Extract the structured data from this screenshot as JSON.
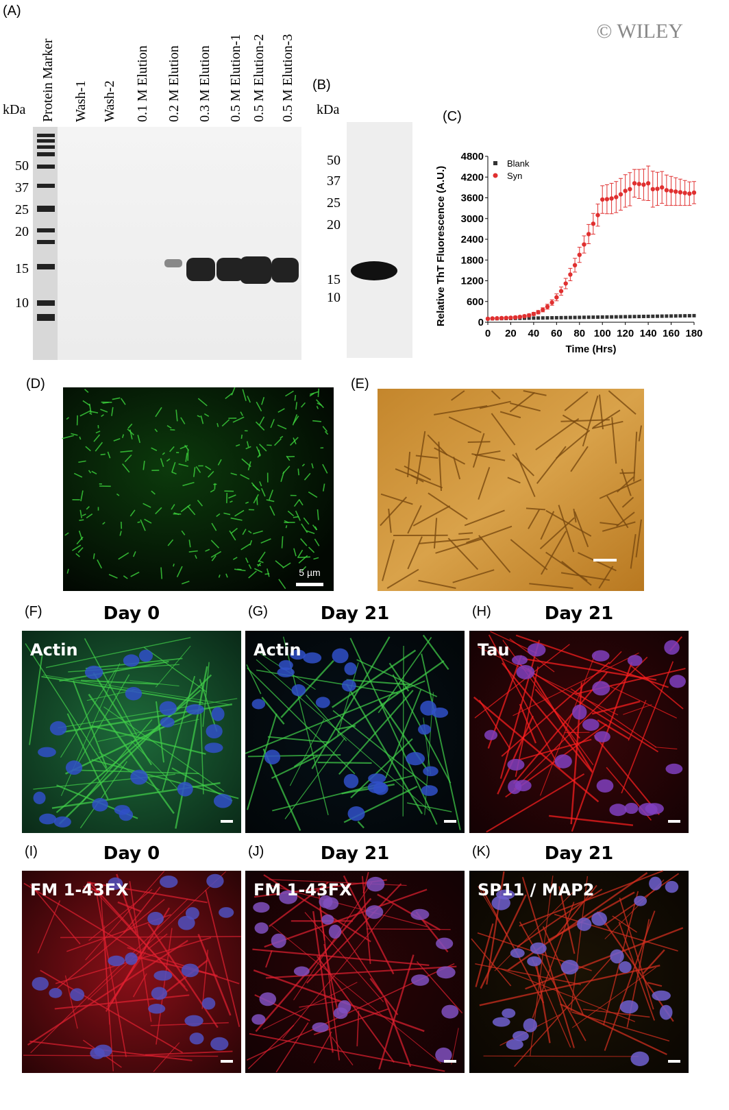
{
  "watermark": "© WILEY",
  "panels": {
    "A": {
      "label": "(A)",
      "unit": "kDa",
      "lanes": [
        "Protein Marker",
        "Wash-1",
        "Wash-2",
        "0.1 M Elution",
        "0.2 M Elution",
        "0.3 M Elution",
        "0.5 M Elution-1",
        "0.5 M Elution-2",
        "0.5 M Elution-3"
      ],
      "markers": [
        "50",
        "37",
        "25",
        "20",
        "15",
        "10"
      ]
    },
    "B": {
      "label": "(B)",
      "unit": "kDa",
      "markers": [
        "50",
        "37",
        "25",
        "20",
        "15",
        "10"
      ]
    },
    "D": {
      "label": "(D)",
      "scale_bar": "5 µm"
    },
    "E": {
      "label": "(E)"
    },
    "F": {
      "label": "(F)",
      "title": "Day 0",
      "stain": "Actin"
    },
    "G": {
      "label": "(G)",
      "title": "Day 21",
      "stain": "Actin"
    },
    "H": {
      "label": "(H)",
      "title": "Day 21",
      "stain": "Tau"
    },
    "I": {
      "label": "(I)",
      "title": "Day 0",
      "stain": "FM 1-43FX"
    },
    "J": {
      "label": "(J)",
      "title": "Day 21",
      "stain": "FM 1-43FX"
    },
    "K": {
      "label": "(K)",
      "title": "Day 21",
      "stain": "SP11 / MAP2"
    }
  },
  "chart_data": {
    "type": "scatter",
    "label": "(C)",
    "x_label": "Time (Hrs)",
    "y_label": "Relative ThT Fluorescence (A.U.)",
    "xlim": [
      0,
      180
    ],
    "ylim": [
      0,
      4800
    ],
    "xticks": [
      0,
      20,
      40,
      60,
      80,
      100,
      120,
      140,
      160,
      180
    ],
    "yticks": [
      0,
      600,
      1200,
      1800,
      2400,
      3000,
      3600,
      4200,
      4800
    ],
    "legend": "top-left",
    "series": [
      {
        "name": "Blank",
        "color": "#333333",
        "marker": "square",
        "x": [
          0,
          4,
          8,
          12,
          16,
          20,
          24,
          28,
          32,
          36,
          40,
          44,
          48,
          52,
          56,
          60,
          64,
          68,
          72,
          76,
          80,
          84,
          88,
          92,
          96,
          100,
          104,
          108,
          112,
          116,
          120,
          124,
          128,
          132,
          136,
          140,
          144,
          148,
          152,
          156,
          160,
          164,
          168,
          172,
          176,
          180
        ],
        "values": [
          100,
          102,
          104,
          106,
          108,
          110,
          112,
          114,
          116,
          118,
          120,
          122,
          124,
          126,
          128,
          130,
          132,
          134,
          136,
          138,
          140,
          142,
          144,
          146,
          148,
          150,
          152,
          154,
          156,
          158,
          160,
          162,
          164,
          166,
          168,
          170,
          172,
          174,
          176,
          178,
          180,
          182,
          184,
          186,
          188,
          190
        ]
      },
      {
        "name": "Syn",
        "color": "#e03030",
        "marker": "circle",
        "x": [
          0,
          4,
          8,
          12,
          16,
          20,
          24,
          28,
          32,
          36,
          40,
          44,
          48,
          52,
          56,
          60,
          64,
          68,
          72,
          76,
          80,
          84,
          88,
          92,
          96,
          100,
          104,
          108,
          112,
          116,
          120,
          124,
          128,
          132,
          136,
          140,
          144,
          148,
          152,
          156,
          160,
          164,
          168,
          172,
          176,
          180
        ],
        "values": [
          100,
          110,
          115,
          120,
          125,
          130,
          140,
          155,
          175,
          200,
          240,
          290,
          360,
          450,
          570,
          720,
          900,
          1120,
          1380,
          1650,
          1950,
          2250,
          2550,
          2850,
          3100,
          3550,
          3560,
          3580,
          3620,
          3700,
          3800,
          3850,
          4020,
          4000,
          3980,
          4020,
          3850,
          3860,
          3900,
          3820,
          3800,
          3780,
          3760,
          3740,
          3720,
          3750
        ],
        "errors": [
          20,
          20,
          20,
          25,
          25,
          25,
          30,
          30,
          35,
          40,
          45,
          50,
          60,
          70,
          80,
          100,
          120,
          150,
          180,
          200,
          220,
          250,
          280,
          300,
          320,
          400,
          420,
          440,
          450,
          460,
          470,
          480,
          400,
          420,
          450,
          500,
          520,
          480,
          460,
          440,
          420,
          400,
          380,
          360,
          340,
          320
        ]
      }
    ]
  }
}
